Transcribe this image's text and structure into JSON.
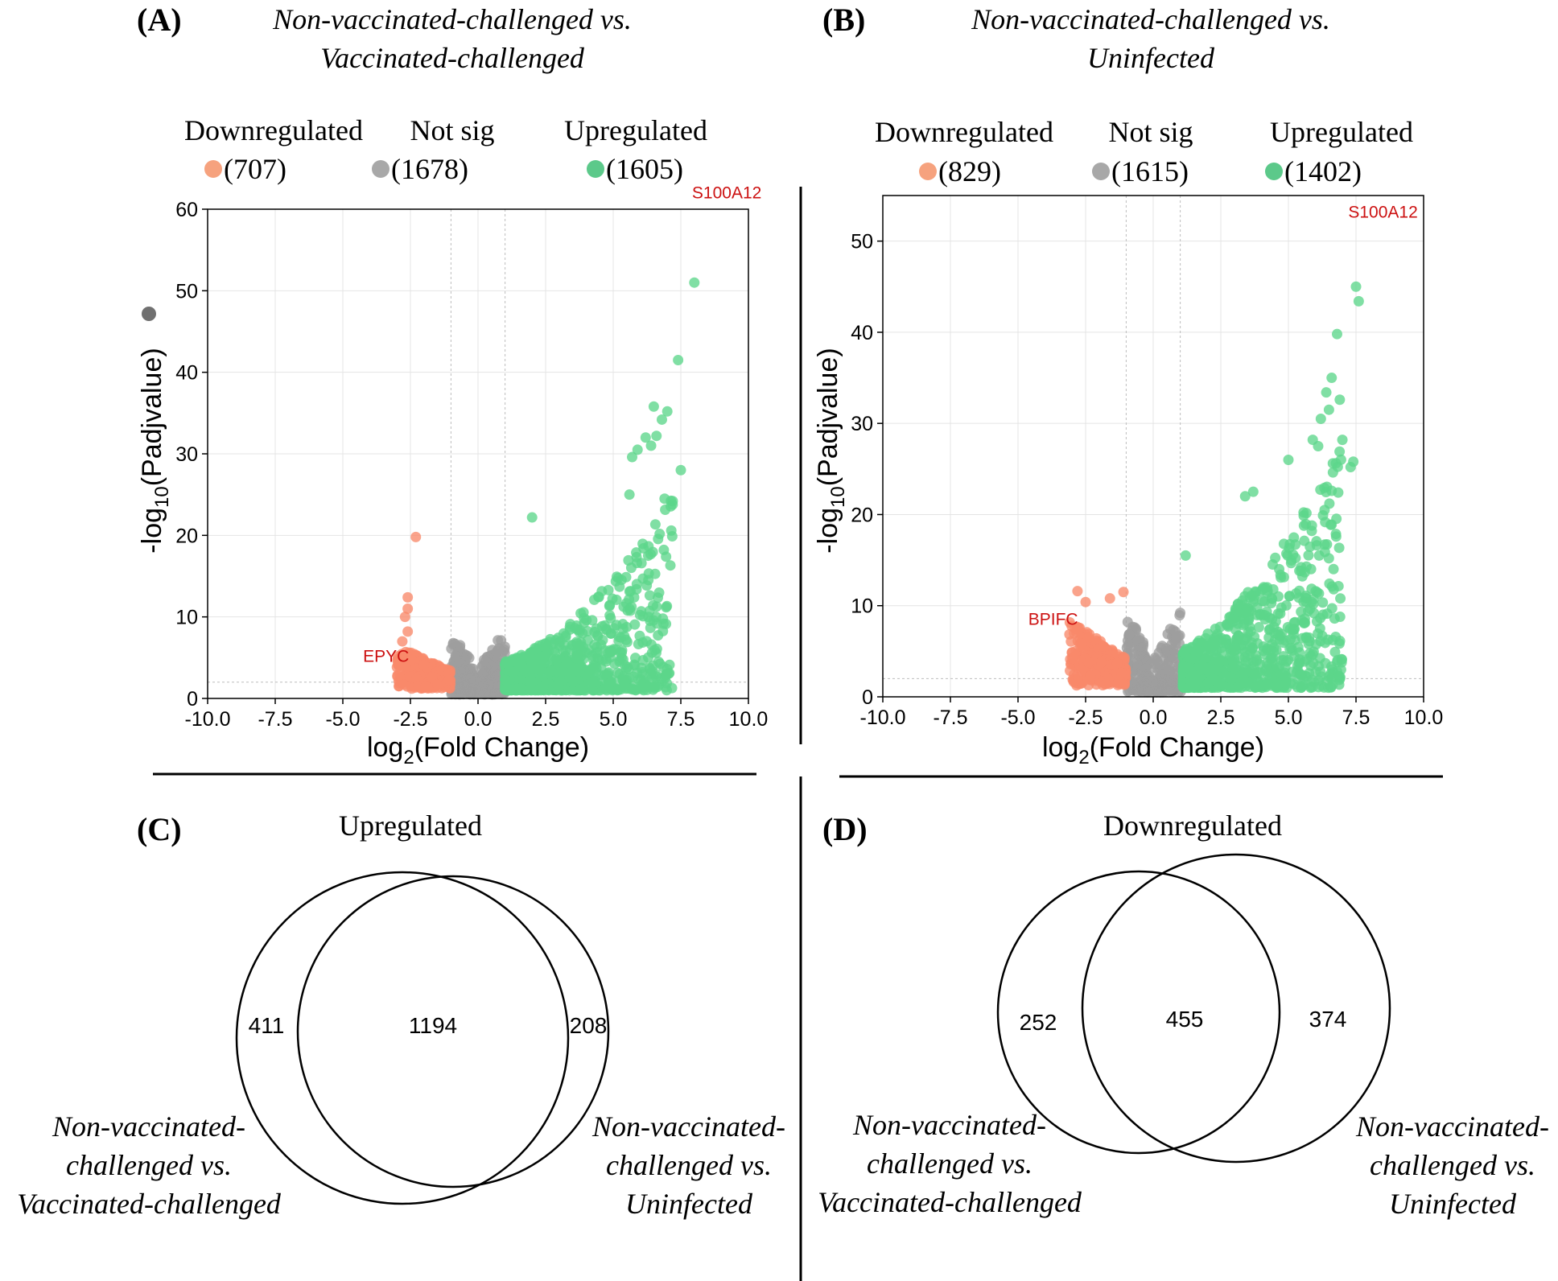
{
  "colors": {
    "down": "#f8896a",
    "notsig": "#9e9e9e",
    "up": "#5cd68b",
    "label": "#cc1111",
    "legend_down": "#f6a27e",
    "legend_notsig": "#a8a8a8",
    "legend_up": "#5cc98a"
  },
  "panels": {
    "A": {
      "letter": "(A)",
      "title_line1": "Non-vaccinated-challenged vs.",
      "title_line2": "Vaccinated-challenged"
    },
    "B": {
      "letter": "(B)",
      "title_line1": "Non-vaccinated-challenged vs.",
      "title_line2": "Uninfected"
    },
    "C": {
      "letter": "(C)"
    },
    "D": {
      "letter": "(D)"
    }
  },
  "chart_data": [
    {
      "id": "A",
      "type": "scatter",
      "title": "Non-vaccinated-challenged vs. Vaccinated-challenged",
      "xlabel_prefix": "log",
      "xlabel_sub": "2",
      "xlabel_suffix": "(Fold Change)",
      "ylabel_prefix": "-log",
      "ylabel_sub": "10",
      "ylabel_suffix": "(Padjvalue)",
      "xlim": [
        -10,
        10
      ],
      "ylim": [
        0,
        60
      ],
      "xticks": [
        -10,
        -7.5,
        -5,
        -2.5,
        0,
        2.5,
        5,
        7.5,
        10
      ],
      "xtick_labels": [
        "-10.0",
        "-7.5",
        "-5.0",
        "-2.5",
        "0.0",
        "2.5",
        "5.0",
        "7.5",
        "10.0"
      ],
      "yticks": [
        0,
        10,
        20,
        30,
        40,
        50,
        60
      ],
      "ytick_labels": [
        "0",
        "10",
        "20",
        "30",
        "40",
        "50",
        "60"
      ],
      "fc_threshold": 1,
      "p_threshold": 2,
      "legend": [
        {
          "name": "Downregulated",
          "count": "(707)"
        },
        {
          "name": "Not sig",
          "count": "(1678)"
        },
        {
          "name": "Upregulated",
          "count": "(1605)"
        }
      ],
      "annotations": [
        {
          "text": "S100A12",
          "x": 9.2,
          "y": 62
        },
        {
          "text": "EPYC",
          "x": -3.4,
          "y": 5.2
        }
      ],
      "highlight_points": [
        {
          "x": 8.0,
          "y": 51
        },
        {
          "x": 7.4,
          "y": 41.5
        },
        {
          "x": 6.5,
          "y": 35.8
        },
        {
          "x": 7.0,
          "y": 35.2
        },
        {
          "x": 6.8,
          "y": 34.2
        },
        {
          "x": 6.2,
          "y": 32.0
        },
        {
          "x": 6.6,
          "y": 32.2
        },
        {
          "x": 5.9,
          "y": 30.5
        },
        {
          "x": 6.4,
          "y": 31.0
        },
        {
          "x": 7.5,
          "y": 28.0
        },
        {
          "x": 5.7,
          "y": 29.6
        },
        {
          "x": 7.2,
          "y": 24.2
        },
        {
          "x": 6.9,
          "y": 24.5
        },
        {
          "x": 5.6,
          "y": 25.0
        },
        {
          "x": 2.0,
          "y": 22.2
        },
        {
          "x": -2.3,
          "y": 19.8
        },
        {
          "x": -2.6,
          "y": 12.4
        },
        {
          "x": -2.6,
          "y": 11.0
        },
        {
          "x": -2.7,
          "y": 10.0
        },
        {
          "x": -2.6,
          "y": 8.2
        },
        {
          "x": -2.8,
          "y": 7.0
        }
      ],
      "cloud": {
        "down": {
          "count": 260,
          "xmin": -3.0,
          "xmax": -1.0,
          "base": 2.2,
          "growth": 3.0
        },
        "notsig": {
          "count": 240,
          "ranges": [
            [
              -1.0,
              -0.15
            ],
            [
              -0.1,
              1.0
            ]
          ],
          "ymin": 0.5,
          "ymax": 8.5
        },
        "up": {
          "count": 900,
          "xmin": 1.0,
          "xmax": 7.2,
          "scale": 0.55,
          "exp": 1.85
        }
      }
    },
    {
      "id": "B",
      "type": "scatter",
      "title": "Non-vaccinated-challenged vs. Uninfected",
      "xlabel_prefix": "log",
      "xlabel_sub": "2",
      "xlabel_suffix": "(Fold Change)",
      "ylabel_prefix": "-log",
      "ylabel_sub": "10",
      "ylabel_suffix": "(Padjvalue)",
      "xlim": [
        -10,
        10
      ],
      "ylim": [
        0,
        55
      ],
      "xticks": [
        -10,
        -7.5,
        -5,
        -2.5,
        0,
        2.5,
        5,
        7.5,
        10
      ],
      "xtick_labels": [
        "-10.0",
        "-7.5",
        "-5.0",
        "-2.5",
        "0.0",
        "2.5",
        "5.0",
        "7.5",
        "10.0"
      ],
      "yticks": [
        0,
        10,
        20,
        30,
        40,
        50
      ],
      "ytick_labels": [
        "0",
        "10",
        "20",
        "30",
        "40",
        "50"
      ],
      "fc_threshold": 1,
      "p_threshold": 2,
      "legend": [
        {
          "name": "Downregulated",
          "count": "(829)"
        },
        {
          "name": "Not sig",
          "count": "(1615)"
        },
        {
          "name": "Upregulated",
          "count": "(1402)"
        }
      ],
      "annotations": [
        {
          "text": "S100A12",
          "x": 8.5,
          "y": 53.2
        },
        {
          "text": "BPIFC",
          "x": -3.7,
          "y": 8.5
        }
      ],
      "highlight_points": [
        {
          "x": 7.5,
          "y": 45.0
        },
        {
          "x": 7.6,
          "y": 43.4
        },
        {
          "x": 6.8,
          "y": 39.8
        },
        {
          "x": 6.6,
          "y": 35.0
        },
        {
          "x": 6.4,
          "y": 33.4
        },
        {
          "x": 6.5,
          "y": 31.5
        },
        {
          "x": 6.9,
          "y": 32.6
        },
        {
          "x": 6.2,
          "y": 30.5
        },
        {
          "x": 5.9,
          "y": 28.2
        },
        {
          "x": 6.1,
          "y": 27.5
        },
        {
          "x": 7.4,
          "y": 25.8
        },
        {
          "x": 7.3,
          "y": 25.2
        },
        {
          "x": 6.6,
          "y": 22.6
        },
        {
          "x": 5.0,
          "y": 26.0
        },
        {
          "x": 3.7,
          "y": 22.5
        },
        {
          "x": 3.4,
          "y": 22.0
        },
        {
          "x": 1.2,
          "y": 15.5
        },
        {
          "x": -2.8,
          "y": 11.6
        },
        {
          "x": -1.1,
          "y": 11.5
        },
        {
          "x": -1.6,
          "y": 10.8
        },
        {
          "x": -2.5,
          "y": 10.4
        }
      ],
      "cloud": {
        "down": {
          "count": 300,
          "xmin": -3.1,
          "xmax": -1.0,
          "base": 3.0,
          "growth": 4.0
        },
        "notsig": {
          "count": 240,
          "ranges": [
            [
              -1.0,
              -0.15
            ],
            [
              0.0,
              1.1
            ]
          ],
          "ymin": 0.5,
          "ymax": 9.5
        },
        "up": {
          "count": 850,
          "xmin": 1.1,
          "xmax": 7.0,
          "scale": 0.9,
          "exp": 1.7
        }
      }
    },
    {
      "id": "C",
      "type": "venn",
      "title": "Upregulated",
      "left_only": "411",
      "intersection": "1194",
      "right_only": "208",
      "left_label": [
        "Non-vaccinated-",
        "challenged vs.",
        "Vaccinated-challenged"
      ],
      "right_label": [
        "Non-vaccinated-",
        "challenged vs.",
        "Uninfected"
      ]
    },
    {
      "id": "D",
      "type": "venn",
      "title": "Downregulated",
      "left_only": "252",
      "intersection": "455",
      "right_only": "374",
      "left_label": [
        "Non-vaccinated-",
        "challenged vs.",
        "Vaccinated-challenged"
      ],
      "right_label": [
        "Non-vaccinated-",
        "challenged vs.",
        "Uninfected"
      ]
    }
  ]
}
